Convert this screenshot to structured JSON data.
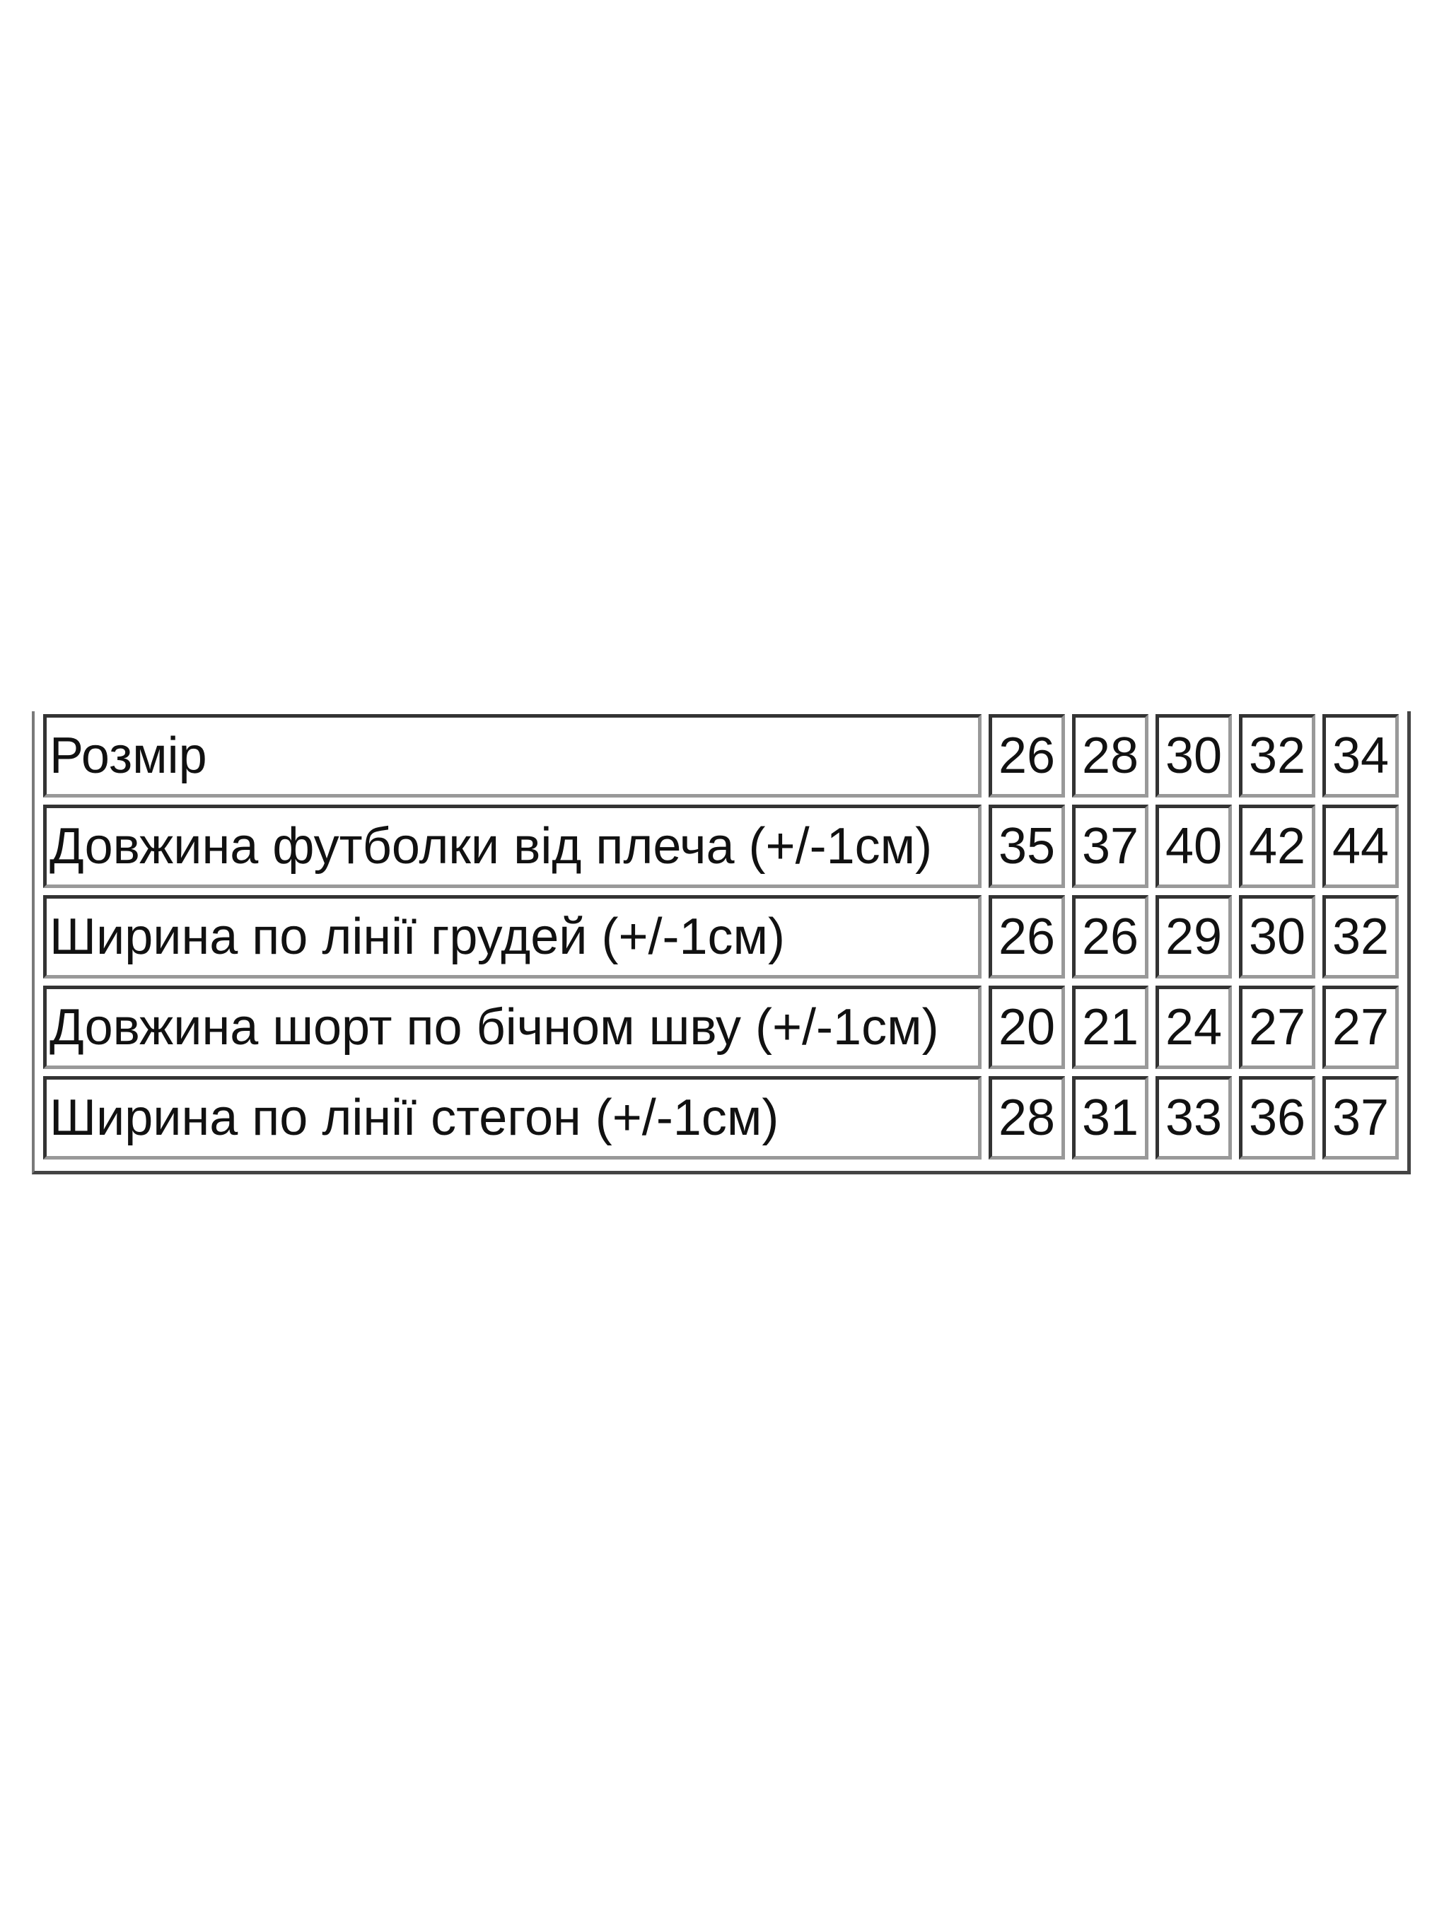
{
  "size_table": {
    "rows": [
      {
        "label": "Розмір",
        "values": [
          "26",
          "28",
          "30",
          "32",
          "34"
        ]
      },
      {
        "label": "Довжина футболки від плеча (+/-1см)",
        "values": [
          "35",
          "37",
          "40",
          "42",
          "44"
        ]
      },
      {
        "label": "Ширина по лінії грудей (+/-1см)",
        "values": [
          "26",
          "26",
          "29",
          "30",
          "32"
        ]
      },
      {
        "label": "Довжина шорт по бічном шву (+/-1см)",
        "values": [
          "20",
          "21",
          "24",
          "27",
          "27"
        ]
      },
      {
        "label": "Ширина по лінії стегон (+/-1см)",
        "values": [
          "28",
          "31",
          "33",
          "36",
          "37"
        ]
      }
    ]
  }
}
